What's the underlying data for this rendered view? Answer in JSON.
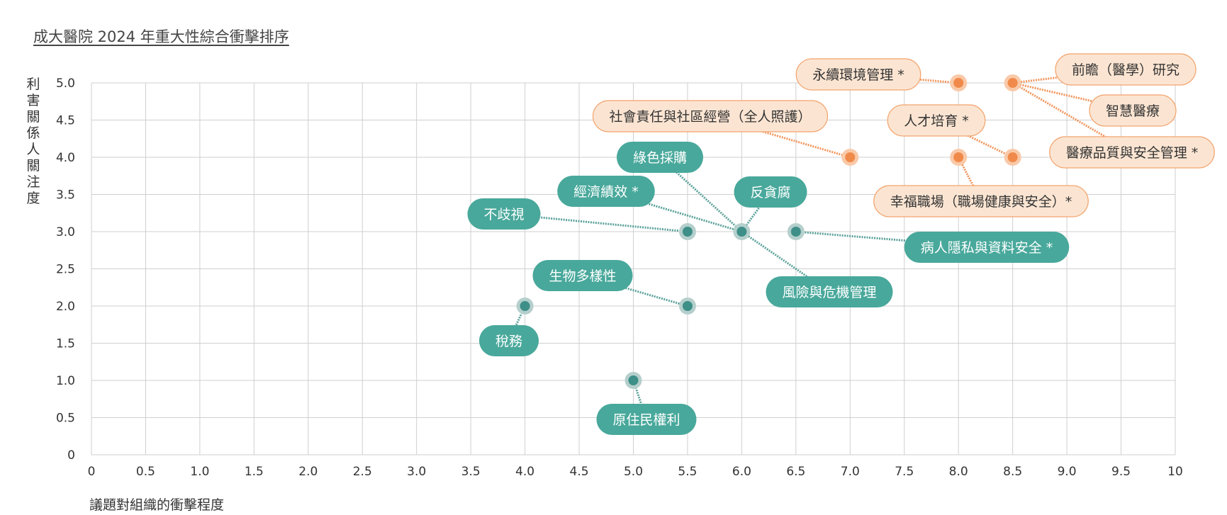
{
  "chart_data": {
    "type": "scatter",
    "title": "成大醫院 2024 年重大性綜合衝擊排序",
    "xlabel": "議題對組織的衝擊程度",
    "ylabel": "利害關係人關注度",
    "xlim": [
      0,
      10
    ],
    "ylim": [
      0,
      5
    ],
    "x_ticks": [
      "0",
      "0.5",
      "1.0",
      "1.5",
      "2.0",
      "2.5",
      "3.0",
      "3.5",
      "4.0",
      "4.5",
      "5.0",
      "5.5",
      "6.0",
      "6.5",
      "7.0",
      "7.5",
      "8.0",
      "8.5",
      "9.0",
      "9.5",
      "10"
    ],
    "y_ticks": [
      "0",
      "0.5",
      "1.0",
      "1.5",
      "2.0",
      "2.5",
      "3.0",
      "3.5",
      "4.0",
      "4.5",
      "5.0"
    ],
    "grid": true,
    "colors": {
      "material": "#f08a4b",
      "other": "#48a89b"
    },
    "points": [
      {
        "label": "永續環境管理 *",
        "x": 8.0,
        "y": 5.0,
        "group": "material"
      },
      {
        "label": "前瞻（醫學）研究",
        "x": 8.5,
        "y": 5.0,
        "group": "material"
      },
      {
        "label": "智慧醫療",
        "x": 8.5,
        "y": 5.0,
        "group": "material"
      },
      {
        "label": "醫療品質與安全管理 *",
        "x": 8.5,
        "y": 5.0,
        "group": "material"
      },
      {
        "label": "人才培育 *",
        "x": 8.5,
        "y": 4.0,
        "group": "material"
      },
      {
        "label": "社會責任與社區經營（全人照護）",
        "x": 7.0,
        "y": 4.0,
        "group": "material"
      },
      {
        "label": "幸福職場（職場健康與安全）*",
        "x": 8.0,
        "y": 4.0,
        "group": "material"
      },
      {
        "label": "綠色採購",
        "x": 6.0,
        "y": 3.0,
        "group": "other"
      },
      {
        "label": "反貪腐",
        "x": 6.0,
        "y": 3.0,
        "group": "other"
      },
      {
        "label": "經濟績效 *",
        "x": 6.0,
        "y": 3.0,
        "group": "other"
      },
      {
        "label": "風險與危機管理",
        "x": 6.0,
        "y": 3.0,
        "group": "other"
      },
      {
        "label": "不歧視",
        "x": 5.5,
        "y": 3.0,
        "group": "other"
      },
      {
        "label": "病人隱私與資料安全 *",
        "x": 6.5,
        "y": 3.0,
        "group": "other"
      },
      {
        "label": "生物多樣性",
        "x": 5.5,
        "y": 2.0,
        "group": "other"
      },
      {
        "label": "稅務",
        "x": 4.0,
        "y": 2.0,
        "group": "other"
      },
      {
        "label": "原住民權利",
        "x": 5.0,
        "y": 1.0,
        "group": "other"
      }
    ]
  }
}
